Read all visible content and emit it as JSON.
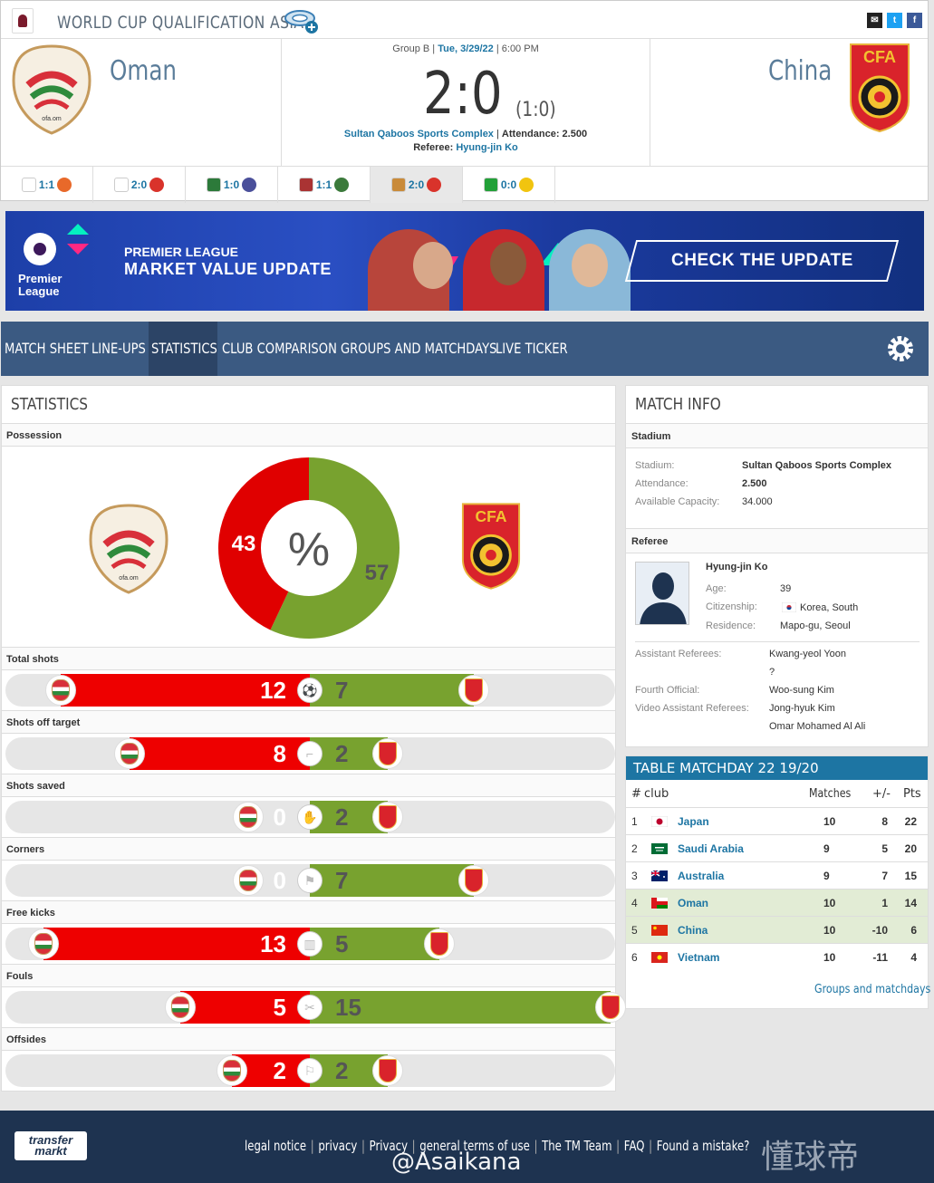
{
  "competition": {
    "title": "WORLD CUP QUALIFICATION ASIA"
  },
  "match": {
    "home": "Oman",
    "away": "China",
    "group": "Group B",
    "date": "Tue, 3/29/22",
    "time": "6:00 PM",
    "score": "2:0",
    "halftime": "(1:0)",
    "venue": "Sultan Qaboos Sports Complex",
    "attendance_label": "Attendance:",
    "attendance": "2.500",
    "referee_label": "Referee:",
    "referee": "Hyung-jin Ko"
  },
  "other_games": [
    {
      "score": "1:1",
      "home_color": "#ffffff",
      "away_color": "#e8692a"
    },
    {
      "score": "2:0",
      "home_color": "#ffffff",
      "away_color": "#d9332b"
    },
    {
      "score": "1:0",
      "home_color": "#2c7a3a",
      "away_color": "#4a4f9a"
    },
    {
      "score": "1:1",
      "home_color": "#aa3333",
      "away_color": "#3b7a3b"
    },
    {
      "score": "2:0",
      "home_color": "#c98b3a",
      "away_color": "#d9332b"
    },
    {
      "score": "0:0",
      "home_color": "#22a038",
      "away_color": "#f1c40f"
    }
  ],
  "banner": {
    "line1": "PREMIER LEAGUE",
    "line2": "MARKET VALUE UPDATE",
    "logo_text1": "Premier",
    "logo_text2": "League",
    "cta": "CHECK THE UPDATE"
  },
  "nav": [
    "MATCH SHEET",
    "LINE-UPS",
    "STATISTICS",
    "CLUB COMPARISON",
    "GROUPS AND MATCHDAYS",
    "LIVE TICKER"
  ],
  "nav_active": "STATISTICS",
  "stats": {
    "title": "STATISTICS",
    "possession_label": "Possession",
    "possession_home": "43",
    "possession_away": "57",
    "possession_symbol": "%",
    "rows": [
      {
        "label": "Total shots",
        "home": "12",
        "away": "7"
      },
      {
        "label": "Shots off target",
        "home": "8",
        "away": "2"
      },
      {
        "label": "Shots saved",
        "home": "0",
        "away": "2"
      },
      {
        "label": "Corners",
        "home": "0",
        "away": "7"
      },
      {
        "label": "Free kicks",
        "home": "13",
        "away": "5"
      },
      {
        "label": "Fouls",
        "home": "5",
        "away": "15"
      },
      {
        "label": "Offsides",
        "home": "2",
        "away": "2"
      }
    ]
  },
  "match_info": {
    "title": "MATCH INFO",
    "stadium_head": "Stadium",
    "stadium_label": "Stadium:",
    "stadium": "Sultan Qaboos Sports Complex",
    "attendance_label": "Attendance:",
    "attendance": "2.500",
    "capacity_label": "Available Capacity:",
    "capacity": "34.000",
    "referee_head": "Referee",
    "referee": "Hyung-jin Ko",
    "age_label": "Age:",
    "age": "39",
    "citizenship_label": "Citizenship:",
    "citizenship": "Korea, South",
    "residence_label": "Residence:",
    "residence": "Mapo-gu, Seoul",
    "assistant_label": "Assistant Referees:",
    "assistant1": "Kwang-yeol Yoon",
    "assistant2": "?",
    "fourth_label": "Fourth Official:",
    "fourth": "Woo-sung Kim",
    "var_label": "Video Assistant Referees:",
    "var1": "Jong-hyuk Kim",
    "var2": "Omar Mohamed Al Ali"
  },
  "league_table": {
    "title": "TABLE MATCHDAY 22 19/20",
    "headers": {
      "rank": "#",
      "club": "club",
      "matches": "Matches",
      "diff": "+/-",
      "pts": "Pts"
    },
    "rows": [
      {
        "rank": "1",
        "club": "Japan",
        "matches": "10",
        "diff": "8",
        "pts": "22",
        "highlight": false
      },
      {
        "rank": "2",
        "club": "Saudi Arabia",
        "matches": "9",
        "diff": "5",
        "pts": "20",
        "highlight": false
      },
      {
        "rank": "3",
        "club": "Australia",
        "matches": "9",
        "diff": "7",
        "pts": "15",
        "highlight": false
      },
      {
        "rank": "4",
        "club": "Oman",
        "matches": "10",
        "diff": "1",
        "pts": "14",
        "highlight": true
      },
      {
        "rank": "5",
        "club": "China",
        "matches": "10",
        "diff": "-10",
        "pts": "6",
        "highlight": true
      },
      {
        "rank": "6",
        "club": "Vietnam",
        "matches": "10",
        "diff": "-11",
        "pts": "4",
        "highlight": false
      }
    ],
    "link": "Groups and matchdays »"
  },
  "footer": {
    "logo1": "transfer",
    "logo2": "markt",
    "links": [
      "legal notice",
      "privacy",
      "Privacy",
      "general terms of use",
      "The TM Team",
      "FAQ",
      "Found a mistake?"
    ],
    "watermark": "@Asaikana",
    "brand": "懂球帝"
  },
  "colors": {
    "home": "#e00000",
    "away": "#78a22f",
    "link": "#1d75a3",
    "nav": "#3b5a82"
  }
}
